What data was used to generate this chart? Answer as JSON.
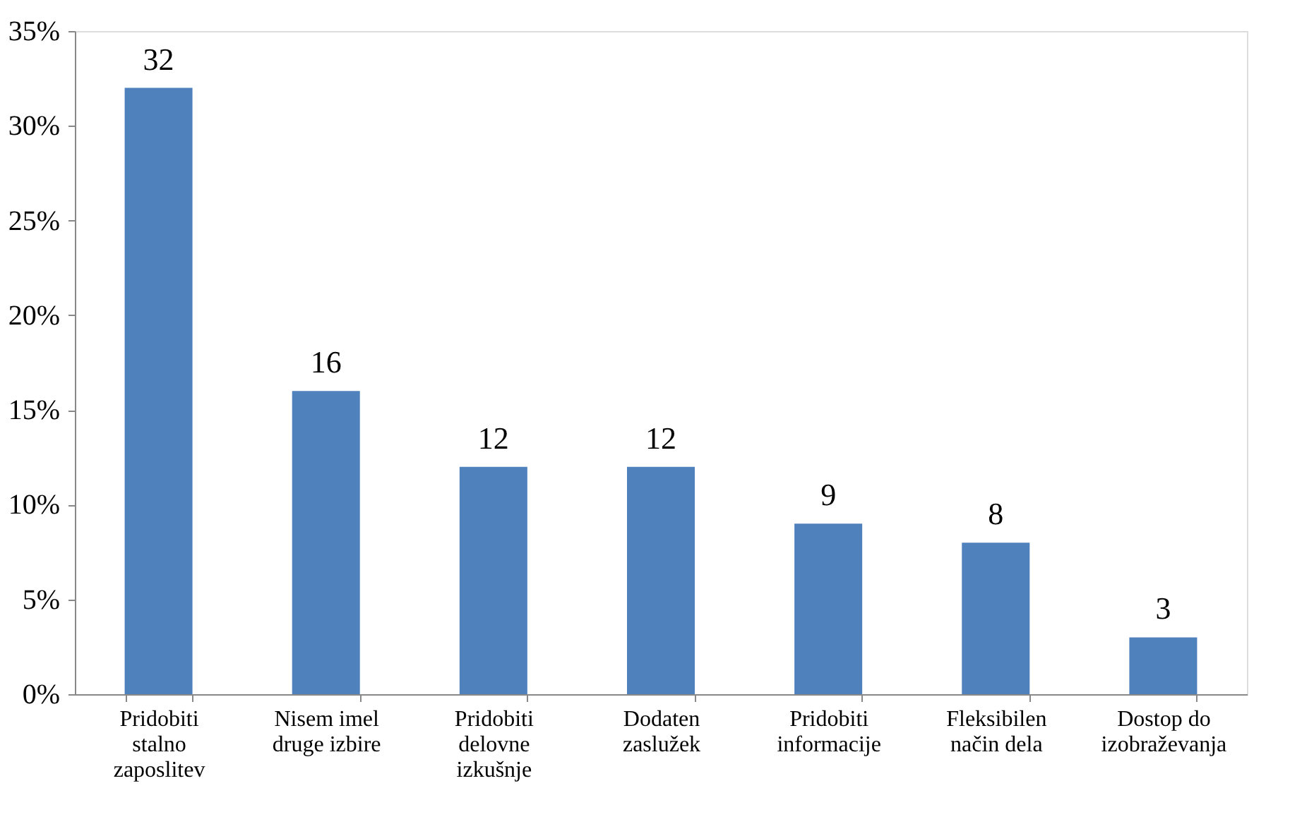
{
  "chart_data": {
    "type": "bar",
    "categories": [
      "Pridobiti stalno zaposlitev",
      "Nisem imel druge izbire",
      "Pridobiti delovne izkušnje",
      "Dodaten zaslužek",
      "Pridobiti informacije",
      "Fleksibilen način dela",
      "Dostop do izobraževanja"
    ],
    "values": [
      32,
      16,
      12,
      12,
      9,
      8,
      3
    ],
    "color": "#4f81bd",
    "ylim": [
      0,
      35
    ],
    "yticks": [
      {
        "value": 0,
        "label": "0%"
      },
      {
        "value": 5,
        "label": "5%"
      },
      {
        "value": 10,
        "label": "10%"
      },
      {
        "value": 15,
        "label": "15%"
      },
      {
        "value": 20,
        "label": "20%"
      },
      {
        "value": 25,
        "label": "25%"
      },
      {
        "value": 30,
        "label": "30%"
      },
      {
        "value": 35,
        "label": "35%"
      }
    ],
    "data_labels": true,
    "grid": false
  }
}
